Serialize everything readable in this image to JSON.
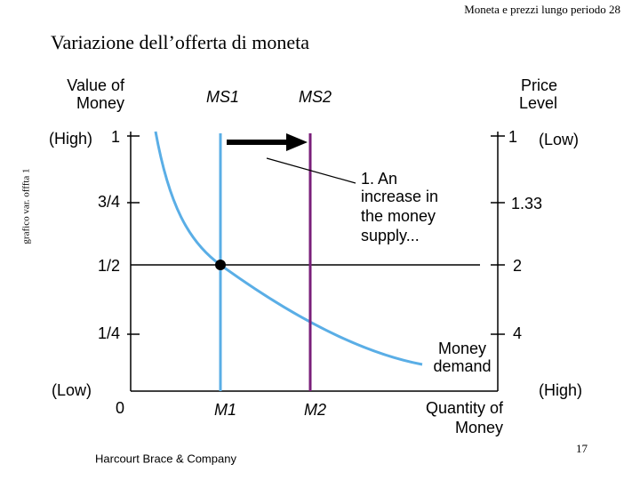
{
  "header": {
    "running_title": "Moneta e prezzi lungo periodo 28",
    "title": "Variazione dell’offerta di moneta",
    "side_note": "grafico var. offfta 1"
  },
  "left_axis": {
    "title": [
      "Value of",
      "Money"
    ],
    "high": "(High)",
    "low": "(Low)",
    "ticks": [
      "1",
      "3/4",
      "1/2",
      "1/4",
      "0"
    ]
  },
  "right_axis": {
    "title": [
      "Price",
      "Level"
    ],
    "low": "(Low)",
    "high": "(High)",
    "ticks": [
      "1",
      "1.33",
      "2",
      "4"
    ]
  },
  "bottom_axis": {
    "title": [
      "Quantity of",
      "Money"
    ],
    "ticks": [
      "M1",
      "M2"
    ]
  },
  "supply_labels": [
    "MS1",
    "MS2"
  ],
  "annotation": [
    "1. An",
    "increase in",
    "the money",
    "supply..."
  ],
  "demand_label": [
    "Money",
    "demand"
  ],
  "footer": {
    "publisher": "Harcourt Brace & Company",
    "page": "17"
  }
}
